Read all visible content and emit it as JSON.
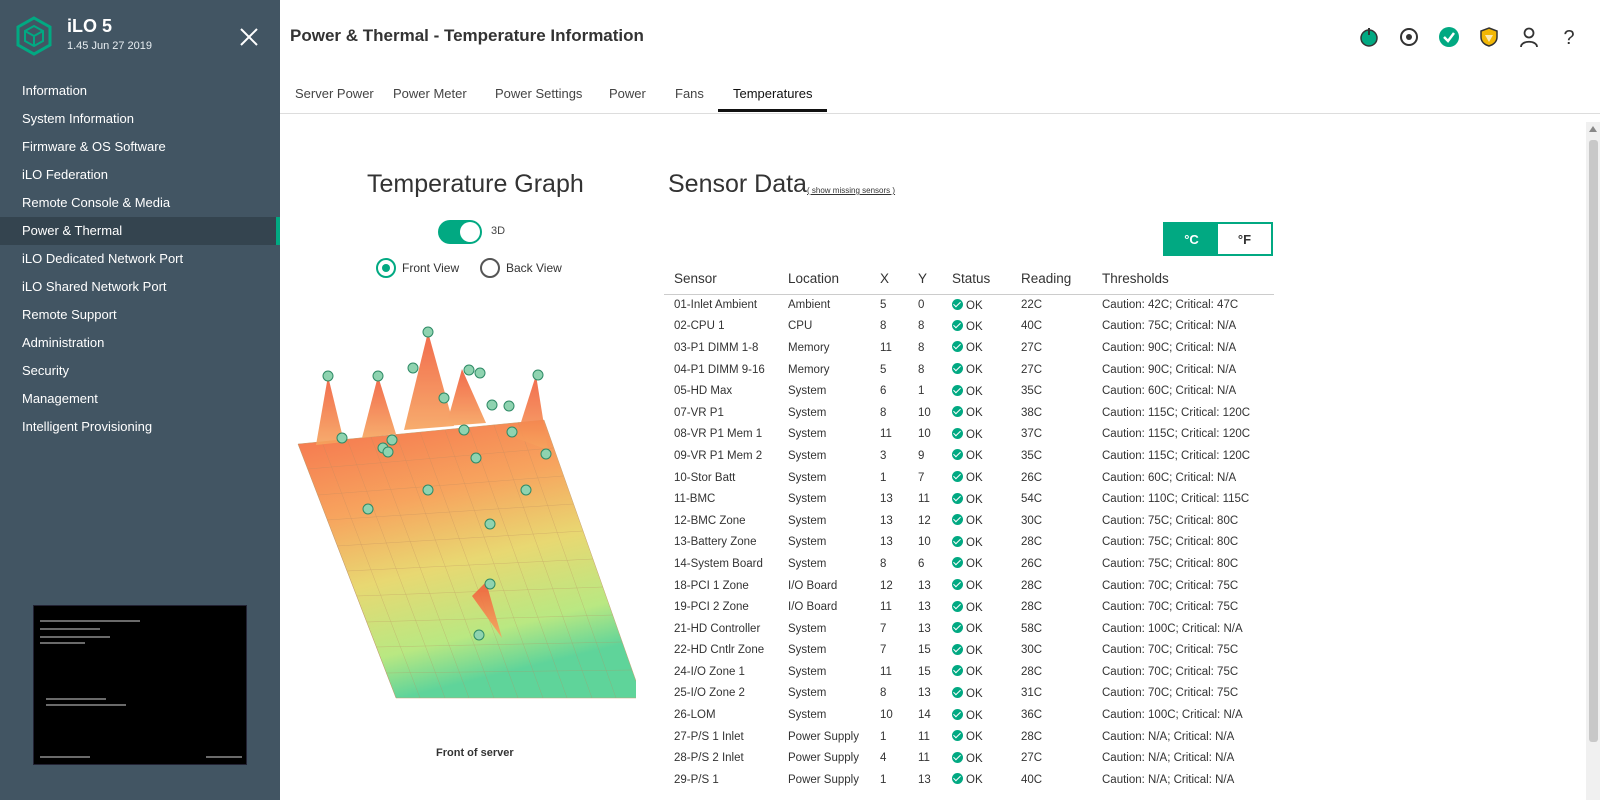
{
  "brand": {
    "title": "iLO 5",
    "version": "1.45 Jun 27 2019"
  },
  "sidebar": {
    "items": [
      {
        "label": "Information"
      },
      {
        "label": "System Information"
      },
      {
        "label": "Firmware & OS Software"
      },
      {
        "label": "iLO Federation"
      },
      {
        "label": "Remote Console & Media"
      },
      {
        "label": "Power & Thermal",
        "active": true
      },
      {
        "label": "iLO Dedicated Network Port"
      },
      {
        "label": "iLO Shared Network Port"
      },
      {
        "label": "Remote Support"
      },
      {
        "label": "Administration"
      },
      {
        "label": "Security"
      },
      {
        "label": "Management"
      },
      {
        "label": "Intelligent Provisioning"
      }
    ]
  },
  "header": {
    "title": "Power & Thermal - Temperature Information",
    "icons": [
      "power-icon",
      "locate-icon",
      "health-ok-icon",
      "security-shield-icon",
      "user-icon",
      "help-icon"
    ]
  },
  "tabs": [
    {
      "label": "Server Power"
    },
    {
      "label": "Power Meter"
    },
    {
      "label": "Power Settings"
    },
    {
      "label": "Power"
    },
    {
      "label": "Fans"
    },
    {
      "label": "Temperatures",
      "active": true
    }
  ],
  "graph": {
    "title": "Temperature Graph",
    "toggle_label": "3D",
    "toggle_on": true,
    "front_view": "Front View",
    "back_view": "Back View",
    "selected_view": "Front View",
    "caption": "Front of server"
  },
  "sensors": {
    "title": "Sensor Data",
    "show_missing": "( show missing sensors )",
    "unit_c": "°C",
    "unit_f": "°F",
    "selected_unit": "°C",
    "columns": [
      "Sensor",
      "Location",
      "X",
      "Y",
      "Status",
      "Reading",
      "Thresholds"
    ],
    "rows": [
      [
        "01-Inlet Ambient",
        "Ambient",
        "5",
        "0",
        "OK",
        "22C",
        "Caution: 42C; Critical: 47C"
      ],
      [
        "02-CPU 1",
        "CPU",
        "8",
        "8",
        "OK",
        "40C",
        "Caution: 75C; Critical: N/A"
      ],
      [
        "03-P1 DIMM 1-8",
        "Memory",
        "11",
        "8",
        "OK",
        "27C",
        "Caution: 90C; Critical: N/A"
      ],
      [
        "04-P1 DIMM 9-16",
        "Memory",
        "5",
        "8",
        "OK",
        "27C",
        "Caution: 90C; Critical: N/A"
      ],
      [
        "05-HD Max",
        "System",
        "6",
        "1",
        "OK",
        "35C",
        "Caution: 60C; Critical: N/A"
      ],
      [
        "07-VR P1",
        "System",
        "8",
        "10",
        "OK",
        "38C",
        "Caution: 115C; Critical: 120C"
      ],
      [
        "08-VR P1 Mem 1",
        "System",
        "11",
        "10",
        "OK",
        "37C",
        "Caution: 115C; Critical: 120C"
      ],
      [
        "09-VR P1 Mem 2",
        "System",
        "3",
        "9",
        "OK",
        "35C",
        "Caution: 115C; Critical: 120C"
      ],
      [
        "10-Stor Batt",
        "System",
        "1",
        "7",
        "OK",
        "26C",
        "Caution: 60C; Critical: N/A"
      ],
      [
        "11-BMC",
        "System",
        "13",
        "11",
        "OK",
        "54C",
        "Caution: 110C; Critical: 115C"
      ],
      [
        "12-BMC Zone",
        "System",
        "13",
        "12",
        "OK",
        "30C",
        "Caution: 75C; Critical: 80C"
      ],
      [
        "13-Battery Zone",
        "System",
        "13",
        "10",
        "OK",
        "28C",
        "Caution: 75C; Critical: 80C"
      ],
      [
        "14-System Board",
        "System",
        "8",
        "6",
        "OK",
        "26C",
        "Caution: 75C; Critical: 80C"
      ],
      [
        "18-PCI 1 Zone",
        "I/O Board",
        "12",
        "13",
        "OK",
        "28C",
        "Caution: 70C; Critical: 75C"
      ],
      [
        "19-PCI 2 Zone",
        "I/O Board",
        "11",
        "13",
        "OK",
        "28C",
        "Caution: 70C; Critical: 75C"
      ],
      [
        "21-HD Controller",
        "System",
        "7",
        "13",
        "OK",
        "58C",
        "Caution: 100C; Critical: N/A"
      ],
      [
        "22-HD Cntlr Zone",
        "System",
        "7",
        "15",
        "OK",
        "30C",
        "Caution: 70C; Critical: 75C"
      ],
      [
        "24-I/O Zone 1",
        "System",
        "11",
        "15",
        "OK",
        "28C",
        "Caution: 70C; Critical: 75C"
      ],
      [
        "25-I/O Zone 2",
        "System",
        "8",
        "13",
        "OK",
        "31C",
        "Caution: 70C; Critical: 75C"
      ],
      [
        "26-LOM",
        "System",
        "10",
        "14",
        "OK",
        "36C",
        "Caution: 100C; Critical: N/A"
      ],
      [
        "27-P/S 1 Inlet",
        "Power Supply",
        "1",
        "11",
        "OK",
        "28C",
        "Caution: N/A; Critical: N/A"
      ],
      [
        "28-P/S 2 Inlet",
        "Power Supply",
        "4",
        "11",
        "OK",
        "27C",
        "Caution: N/A; Critical: N/A"
      ],
      [
        "29-P/S 1",
        "Power Supply",
        "1",
        "13",
        "OK",
        "40C",
        "Caution: N/A; Critical: N/A"
      ]
    ]
  },
  "colors": {
    "sidebar_bg": "#425563",
    "accent": "#01a982",
    "active_nav": "#34444f"
  }
}
